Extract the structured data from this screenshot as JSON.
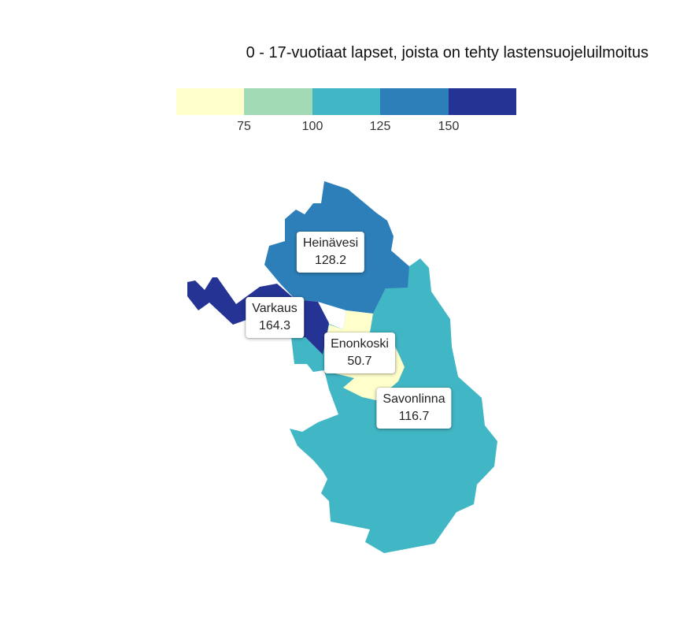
{
  "title": "0 - 17-vuotiaat lapset, joista on tehty lastensuojeluilmoitus",
  "legend": {
    "colors": [
      "#ffffcc",
      "#a1dab4",
      "#41b6c4",
      "#2c7fb8",
      "#253494"
    ],
    "ticks": [
      "75",
      "100",
      "125",
      "150"
    ]
  },
  "regions": [
    {
      "name": "Heinävesi",
      "value": "128.2",
      "color": "#2c7fb8"
    },
    {
      "name": "Varkaus",
      "value": "164.3",
      "color": "#253494"
    },
    {
      "name": "Enonkoski",
      "value": "50.7",
      "color": "#ffffcc"
    },
    {
      "name": "Savonlinna",
      "value": "116.7",
      "color": "#41b6c4"
    }
  ]
}
